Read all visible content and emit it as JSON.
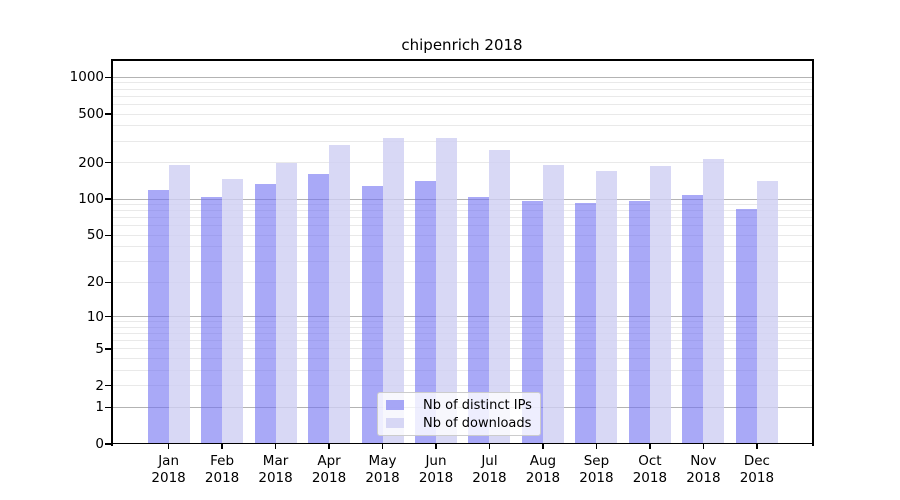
{
  "title": "chipenrich 2018",
  "chart_data": {
    "type": "bar",
    "title": "chipenrich 2018",
    "categories": [
      {
        "month": "Jan",
        "year": "2018"
      },
      {
        "month": "Feb",
        "year": "2018"
      },
      {
        "month": "Mar",
        "year": "2018"
      },
      {
        "month": "Apr",
        "year": "2018"
      },
      {
        "month": "May",
        "year": "2018"
      },
      {
        "month": "Jun",
        "year": "2018"
      },
      {
        "month": "Jul",
        "year": "2018"
      },
      {
        "month": "Aug",
        "year": "2018"
      },
      {
        "month": "Sep",
        "year": "2018"
      },
      {
        "month": "Oct",
        "year": "2018"
      },
      {
        "month": "Nov",
        "year": "2018"
      },
      {
        "month": "Dec",
        "year": "2018"
      }
    ],
    "series": [
      {
        "name": "Nb of distinct IPs",
        "color": "#7070f2",
        "alpha": 0.6,
        "values": [
          118,
          104,
          134,
          162,
          128,
          140,
          105,
          96,
          92,
          97,
          109,
          83
        ]
      },
      {
        "name": "Nb of downloads",
        "color": "#cecef2",
        "alpha": 0.8,
        "values": [
          190,
          147,
          199,
          278,
          317,
          316,
          253,
          190,
          170,
          187,
          212,
          140
        ]
      }
    ],
    "xlabel": "",
    "ylabel": "",
    "yscale": "log10(value+1)",
    "yticks": [
      0,
      1,
      2,
      5,
      10,
      20,
      50,
      100,
      200,
      500,
      1000
    ],
    "ylim": [
      0,
      1380
    ],
    "grid": "horizontal major+minor",
    "legend_position": "lower center inside plot"
  },
  "colors": {
    "background": "#ffffff",
    "axis": "#000000",
    "major_grid": "#b3b3b3",
    "minor_grid": "#e9e9e9",
    "legend_border": "#cccccc",
    "ips_bar": "#7070f2",
    "downloads_bar": "#cecef2"
  }
}
